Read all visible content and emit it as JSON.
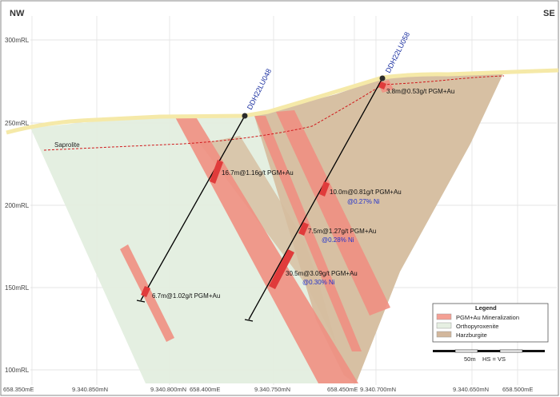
{
  "orientation": {
    "left": "NW",
    "right": "SE"
  },
  "rl_labels": [
    "300mRL",
    "250mRL",
    "200mRL",
    "150mRL",
    "100mRL"
  ],
  "bottom_labels": [
    "658.350mE",
    "9.340.850mN",
    "9.340.800mN",
    "658.400mE",
    "9.340.750mN",
    "658.450mE",
    "9.340.700mN",
    "9.340.650mN",
    "658.500mE"
  ],
  "drillholes": [
    {
      "name": "DDH22LU048"
    },
    {
      "name": "DDH22LU058"
    }
  ],
  "saprolite_label": "Saprolite",
  "intercepts": [
    {
      "grade": "3.8m@0.53g/t PGM+Au",
      "ni": ""
    },
    {
      "grade": "16.7m@1.16g/t PGM+Au",
      "ni": ""
    },
    {
      "grade": "10.0m@0.81g/t PGM+Au",
      "ni": "@0.27% Ni"
    },
    {
      "grade": "7.5m@1.27g/t PGM+Au",
      "ni": "@0.28% Ni"
    },
    {
      "grade": "30.5m@3.09g/t PGM+Au",
      "ni": "@0.30% Ni"
    },
    {
      "grade": "6.7m@1.02g/t PGM+Au",
      "ni": ""
    }
  ],
  "legend": {
    "title": "Legend",
    "items": [
      {
        "label": "PGM+Au Mineralization",
        "color": "#f4a094"
      },
      {
        "label": "Orthopyroxenite",
        "color": "#e6efe2"
      },
      {
        "label": "Harzburgite",
        "color": "#d2b79c"
      }
    ]
  },
  "scale": {
    "label": "50m",
    "hs_vs": "HS = VS"
  },
  "colors": {
    "mineralization": "#f08f82",
    "mineralization_strong": "#e03b3b",
    "orthopyroxenite": "#e3eedf",
    "harzburgite": "#d6bd9f",
    "saprolite_line": "#d0181b",
    "drillhole_label": "#1a2fa0",
    "ni_label": "#2233cc",
    "topography": "#f5e9a8"
  }
}
